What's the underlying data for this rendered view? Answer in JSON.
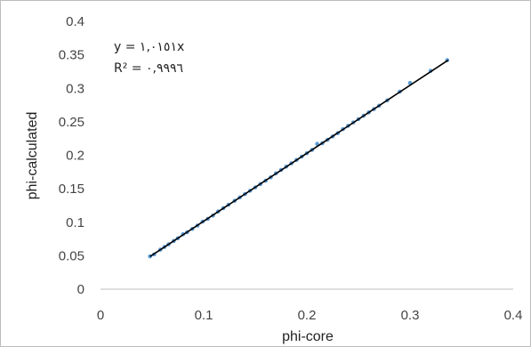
{
  "chart_data": {
    "type": "scatter",
    "title": "",
    "xlabel": "phi-core",
    "ylabel": "phi-calculated",
    "xlim": [
      0,
      0.4
    ],
    "ylim": [
      0,
      0.4
    ],
    "x_ticks": [
      "0",
      "0.1",
      "0.2",
      "0.3",
      "0.4"
    ],
    "y_ticks": [
      "0",
      "0.05",
      "0.1",
      "0.15",
      "0.2",
      "0.25",
      "0.3",
      "0.35",
      "0.4"
    ],
    "grid": false,
    "legend": "none",
    "annotations": {
      "equation": "y = ١,٠١٥١x",
      "r_squared": "R² = ٠,٩٩٩٦"
    },
    "trendline": {
      "type": "linear-through-origin",
      "slope": 1.0151,
      "x_range": [
        0.048,
        0.337
      ],
      "color": "#000000"
    },
    "series": [
      {
        "color": "#5b9bd5",
        "points": [
          [
            0.048,
            0.049
          ],
          [
            0.052,
            0.052
          ],
          [
            0.058,
            0.059
          ],
          [
            0.062,
            0.063
          ],
          [
            0.066,
            0.067
          ],
          [
            0.071,
            0.072
          ],
          [
            0.075,
            0.076
          ],
          [
            0.08,
            0.082
          ],
          [
            0.084,
            0.085
          ],
          [
            0.089,
            0.09
          ],
          [
            0.094,
            0.095
          ],
          [
            0.099,
            0.101
          ],
          [
            0.104,
            0.105
          ],
          [
            0.109,
            0.11
          ],
          [
            0.114,
            0.116
          ],
          [
            0.119,
            0.121
          ],
          [
            0.124,
            0.126
          ],
          [
            0.13,
            0.132
          ],
          [
            0.135,
            0.137
          ],
          [
            0.14,
            0.142
          ],
          [
            0.145,
            0.147
          ],
          [
            0.15,
            0.152
          ],
          [
            0.155,
            0.157
          ],
          [
            0.16,
            0.162
          ],
          [
            0.165,
            0.167
          ],
          [
            0.17,
            0.173
          ],
          [
            0.175,
            0.178
          ],
          [
            0.18,
            0.183
          ],
          [
            0.185,
            0.188
          ],
          [
            0.19,
            0.193
          ],
          [
            0.195,
            0.198
          ],
          [
            0.2,
            0.203
          ],
          [
            0.205,
            0.208
          ],
          [
            0.21,
            0.217
          ],
          [
            0.215,
            0.218
          ],
          [
            0.22,
            0.223
          ],
          [
            0.225,
            0.228
          ],
          [
            0.23,
            0.233
          ],
          [
            0.235,
            0.239
          ],
          [
            0.24,
            0.244
          ],
          [
            0.245,
            0.249
          ],
          [
            0.25,
            0.254
          ],
          [
            0.255,
            0.259
          ],
          [
            0.26,
            0.264
          ],
          [
            0.265,
            0.269
          ],
          [
            0.27,
            0.274
          ],
          [
            0.278,
            0.282
          ],
          [
            0.29,
            0.295
          ],
          [
            0.3,
            0.308
          ],
          [
            0.32,
            0.326
          ],
          [
            0.336,
            0.342
          ]
        ]
      }
    ]
  }
}
